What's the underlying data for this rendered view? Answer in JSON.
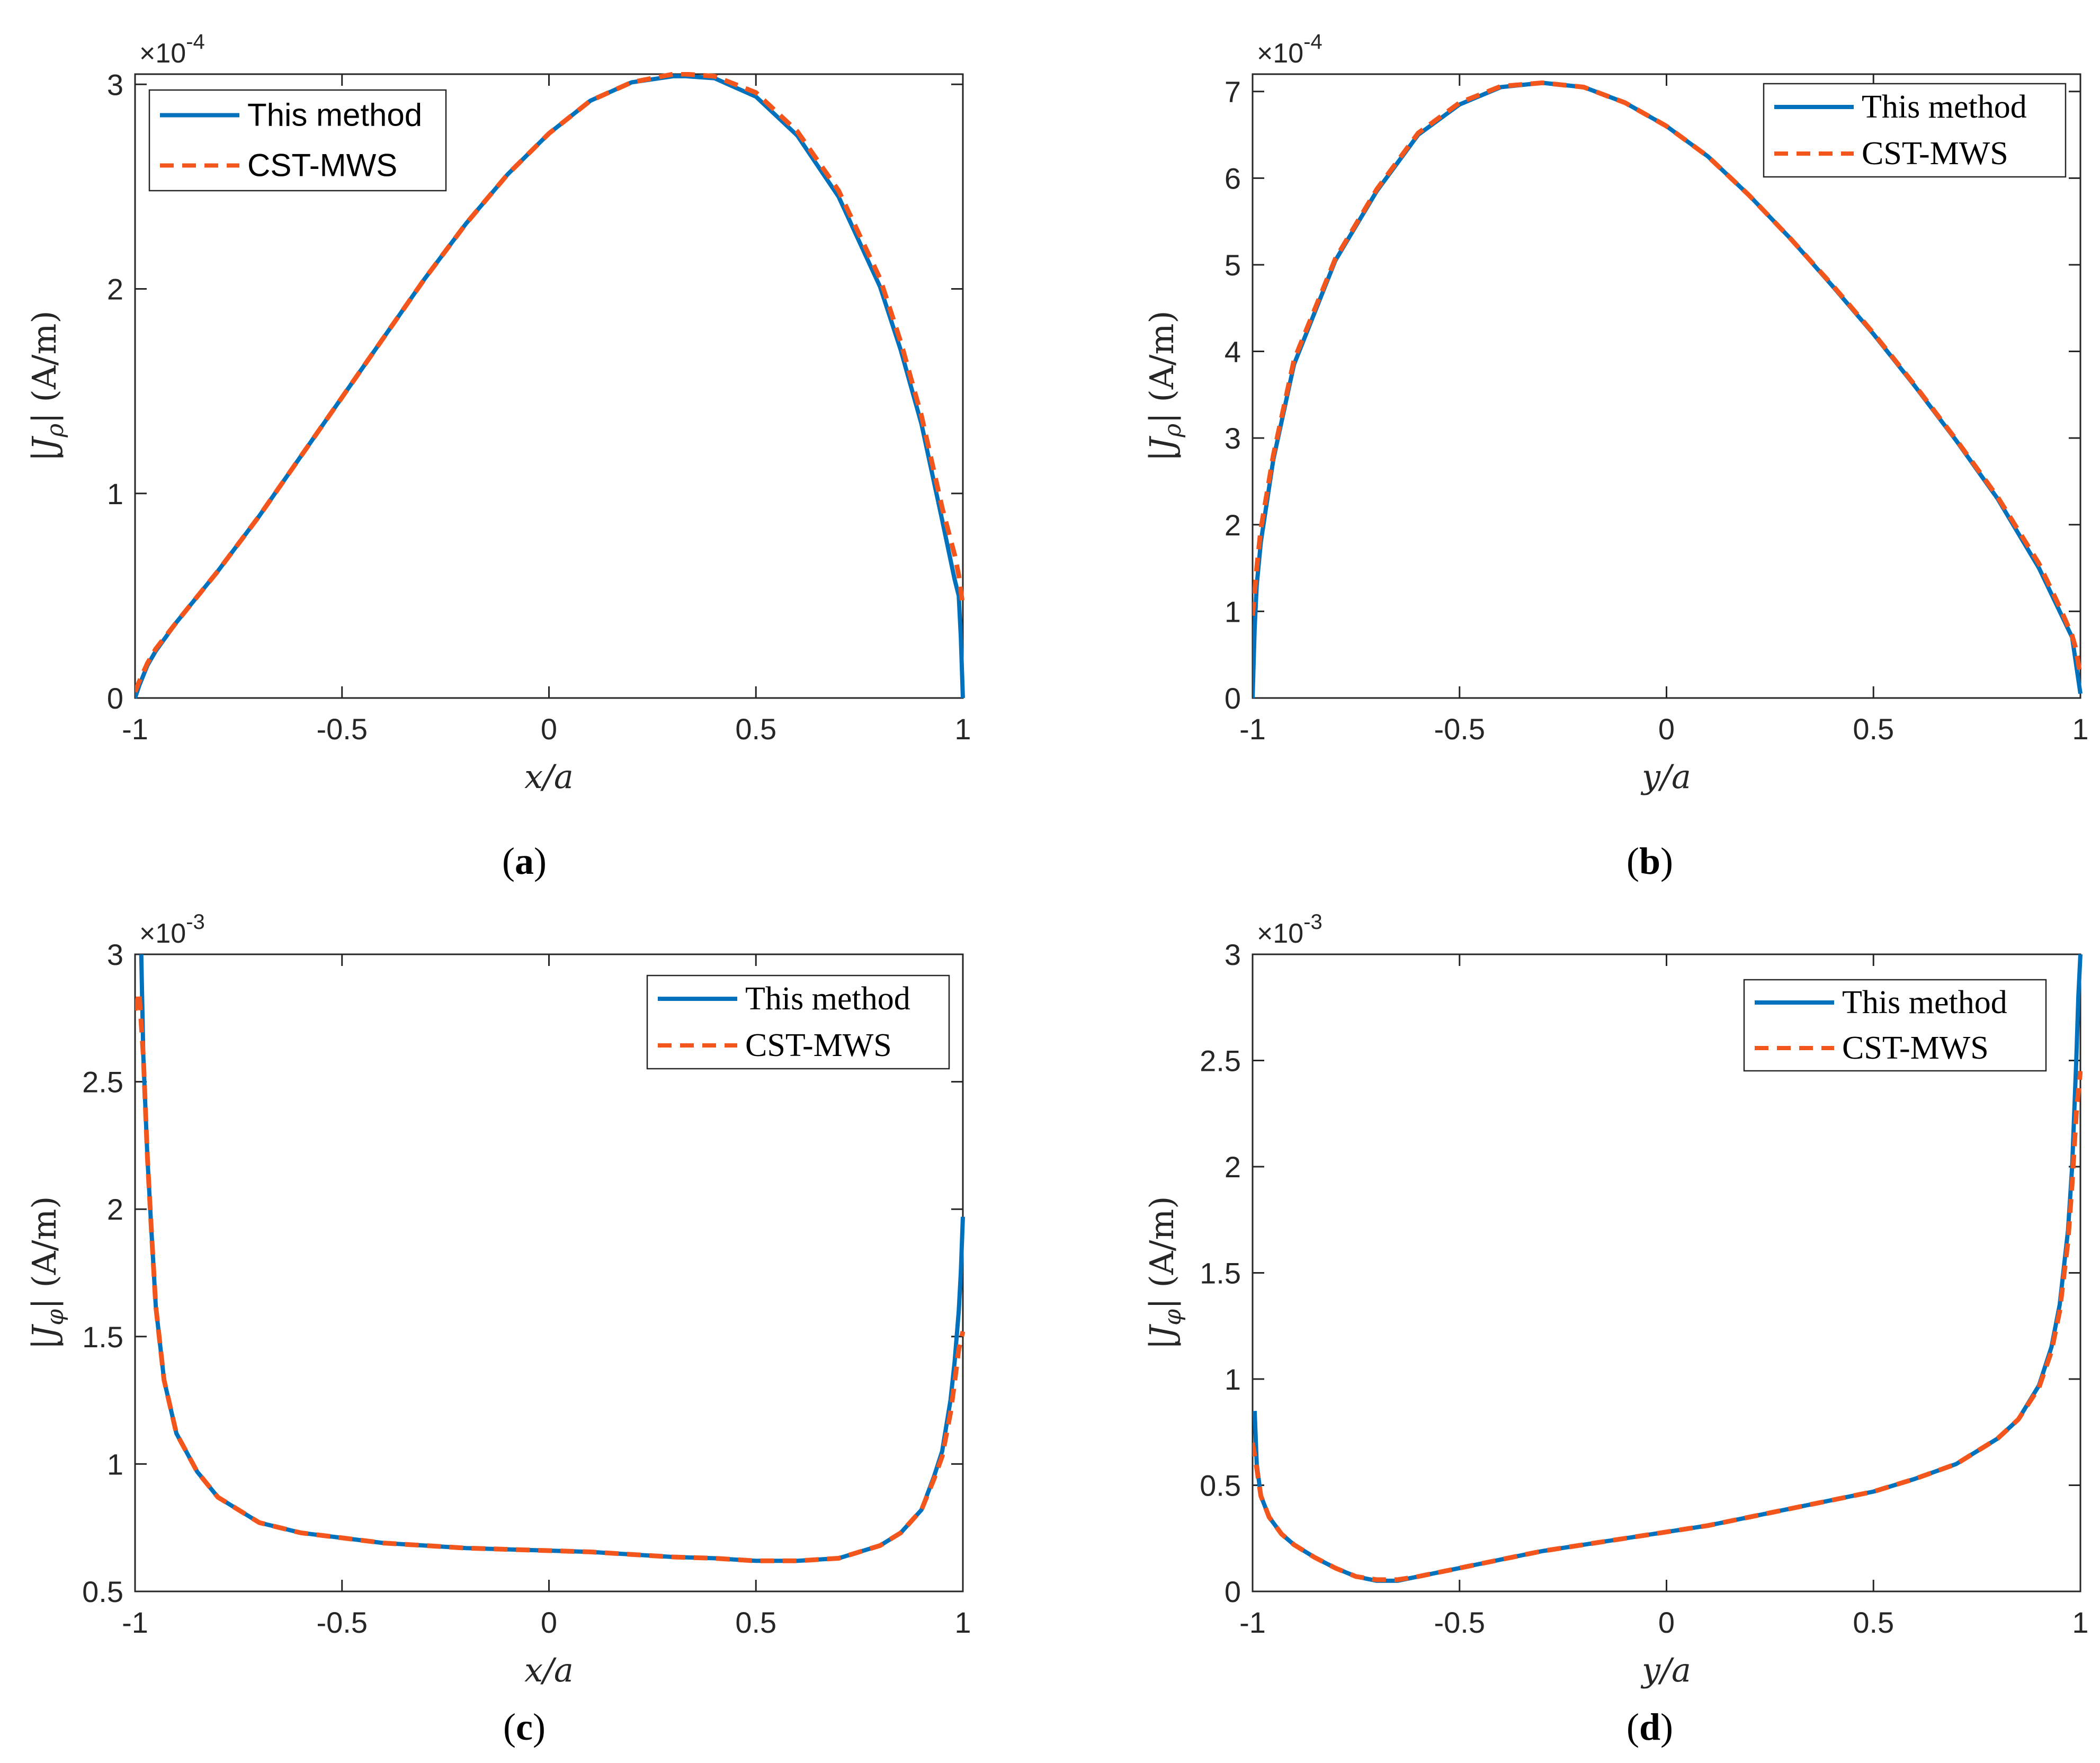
{
  "colors": {
    "method": "#0072BD",
    "cst": "#F2561D",
    "axis": "#262626"
  },
  "chart_data": [
    {
      "panel": "a",
      "caption_letter": "a",
      "type": "line",
      "xlabel": "x/a",
      "ylabel": "|J_ρ| (A/m)",
      "ylabel_parts": {
        "var": "J",
        "sub": "ρ",
        "unit": "(A/m)"
      },
      "xlim": [
        -1,
        1
      ],
      "ylim": [
        0,
        3.05
      ],
      "xticks": [
        "-1",
        "-0.5",
        "0",
        "0.5",
        "1"
      ],
      "xtick_values": [
        -1,
        -0.5,
        0,
        0.5,
        1
      ],
      "yticks": [
        "0",
        "1",
        "2",
        "3"
      ],
      "ytick_values": [
        0,
        1,
        2,
        3
      ],
      "exponent": {
        "base": "×10",
        "power": "-4"
      },
      "legend": {
        "position": "top-left",
        "style": "sans",
        "entries": [
          "This method",
          "CST-MWS"
        ]
      },
      "series": [
        {
          "name": "This method",
          "style": "solid",
          "x": [
            -1,
            -0.99,
            -0.97,
            -0.95,
            -0.9,
            -0.8,
            -0.7,
            -0.6,
            -0.5,
            -0.4,
            -0.3,
            -0.2,
            -0.1,
            0,
            0.1,
            0.2,
            0.3,
            0.33,
            0.4,
            0.5,
            0.6,
            0.7,
            0.8,
            0.85,
            0.9,
            0.95,
            0.98,
            0.99,
            0.995,
            1.0
          ],
          "y": [
            0,
            0.06,
            0.16,
            0.23,
            0.37,
            0.62,
            0.89,
            1.18,
            1.47,
            1.76,
            2.05,
            2.32,
            2.56,
            2.76,
            2.92,
            3.01,
            3.04,
            3.04,
            3.03,
            2.94,
            2.75,
            2.45,
            2.01,
            1.7,
            1.34,
            0.87,
            0.58,
            0.5,
            0.3,
            0
          ]
        },
        {
          "name": "CST-MWS",
          "style": "dashed",
          "x": [
            -1,
            -0.99,
            -0.97,
            -0.95,
            -0.9,
            -0.8,
            -0.7,
            -0.6,
            -0.5,
            -0.4,
            -0.3,
            -0.2,
            -0.1,
            0,
            0.1,
            0.2,
            0.3,
            0.33,
            0.4,
            0.5,
            0.6,
            0.7,
            0.8,
            0.85,
            0.9,
            0.95,
            0.98,
            0.99,
            1.0
          ],
          "y": [
            0.03,
            0.08,
            0.17,
            0.24,
            0.37,
            0.62,
            0.89,
            1.18,
            1.47,
            1.76,
            2.05,
            2.32,
            2.56,
            2.76,
            2.92,
            3.01,
            3.05,
            3.05,
            3.04,
            2.96,
            2.77,
            2.48,
            2.05,
            1.74,
            1.38,
            0.93,
            0.7,
            0.6,
            0.45
          ]
        }
      ]
    },
    {
      "panel": "b",
      "caption_letter": "b",
      "type": "line",
      "xlabel": "y/a",
      "ylabel": "|J_ρ| (A/m)",
      "ylabel_parts": {
        "var": "J",
        "sub": "ρ",
        "unit": "(A/m)"
      },
      "xlim": [
        -1,
        1
      ],
      "ylim": [
        0,
        7.2
      ],
      "xticks": [
        "-1",
        "-0.5",
        "0",
        "0.5",
        "1"
      ],
      "xtick_values": [
        -1,
        -0.5,
        0,
        0.5,
        1
      ],
      "yticks": [
        "0",
        "1",
        "2",
        "3",
        "4",
        "5",
        "6",
        "7"
      ],
      "ytick_values": [
        0,
        1,
        2,
        3,
        4,
        5,
        6,
        7
      ],
      "exponent": {
        "base": "×10",
        "power": "-4"
      },
      "legend": {
        "position": "top-right",
        "style": "serif",
        "entries": [
          "This method",
          "CST-MWS"
        ]
      },
      "series": [
        {
          "name": "This method",
          "style": "solid",
          "x": [
            -1,
            -0.995,
            -0.99,
            -0.98,
            -0.95,
            -0.9,
            -0.8,
            -0.7,
            -0.6,
            -0.5,
            -0.4,
            -0.3,
            -0.2,
            -0.1,
            0,
            0.1,
            0.2,
            0.3,
            0.4,
            0.5,
            0.6,
            0.7,
            0.8,
            0.9,
            0.95,
            0.98,
            1.0
          ],
          "y": [
            0,
            0.8,
            1.3,
            1.8,
            2.75,
            3.85,
            5.05,
            5.85,
            6.5,
            6.85,
            7.05,
            7.1,
            7.05,
            6.87,
            6.6,
            6.25,
            5.8,
            5.3,
            4.76,
            4.2,
            3.6,
            2.97,
            2.3,
            1.5,
            1.0,
            0.7,
            0.05
          ]
        },
        {
          "name": "CST-MWS",
          "style": "dashed",
          "x": [
            -1,
            -0.99,
            -0.98,
            -0.95,
            -0.9,
            -0.8,
            -0.7,
            -0.6,
            -0.5,
            -0.4,
            -0.3,
            -0.2,
            -0.1,
            0,
            0.1,
            0.2,
            0.3,
            0.4,
            0.5,
            0.6,
            0.7,
            0.8,
            0.9,
            0.95,
            0.98,
            0.99,
            1.0
          ],
          "y": [
            0.95,
            1.5,
            1.95,
            2.8,
            3.9,
            5.07,
            5.87,
            6.52,
            6.87,
            7.06,
            7.1,
            7.05,
            6.87,
            6.6,
            6.25,
            5.8,
            5.3,
            4.77,
            4.21,
            3.61,
            2.98,
            2.32,
            1.55,
            1.05,
            0.72,
            0.55,
            0.25
          ]
        }
      ]
    },
    {
      "panel": "c",
      "caption_letter": "c",
      "type": "line",
      "xlabel": "x/a",
      "ylabel": "|J_φ| (A/m)",
      "ylabel_parts": {
        "var": "J",
        "sub": "φ",
        "unit": "(A/m)"
      },
      "xlim": [
        -1,
        1
      ],
      "ylim": [
        0.5,
        3
      ],
      "xticks": [
        "-1",
        "-0.5",
        "0",
        "0.5",
        "1"
      ],
      "xtick_values": [
        -1,
        -0.5,
        0,
        0.5,
        1
      ],
      "yticks": [
        "0.5",
        "1",
        "1.5",
        "2",
        "2.5",
        "3"
      ],
      "ytick_values": [
        0.5,
        1,
        1.5,
        2,
        2.5,
        3
      ],
      "exponent": {
        "base": "×10",
        "power": "-3"
      },
      "legend": {
        "position": "top-right",
        "style": "serif",
        "entries": [
          "This method",
          "CST-MWS"
        ]
      },
      "series": [
        {
          "name": "This method",
          "style": "solid",
          "x": [
            -0.985,
            -0.98,
            -0.97,
            -0.96,
            -0.95,
            -0.93,
            -0.9,
            -0.85,
            -0.8,
            -0.7,
            -0.6,
            -0.5,
            -0.4,
            -0.3,
            -0.2,
            -0.1,
            0,
            0.1,
            0.2,
            0.3,
            0.4,
            0.5,
            0.6,
            0.7,
            0.8,
            0.85,
            0.9,
            0.93,
            0.95,
            0.97,
            0.98,
            0.99,
            0.995,
            1.0
          ],
          "y": [
            3.0,
            2.6,
            2.2,
            1.9,
            1.62,
            1.33,
            1.12,
            0.97,
            0.87,
            0.77,
            0.73,
            0.71,
            0.69,
            0.68,
            0.67,
            0.665,
            0.66,
            0.655,
            0.645,
            0.635,
            0.63,
            0.62,
            0.62,
            0.63,
            0.68,
            0.73,
            0.82,
            0.95,
            1.05,
            1.25,
            1.4,
            1.6,
            1.75,
            1.97
          ]
        },
        {
          "name": "CST-MWS",
          "style": "dashed",
          "x": [
            -1,
            -0.99,
            -0.98,
            -0.97,
            -0.96,
            -0.95,
            -0.93,
            -0.9,
            -0.85,
            -0.8,
            -0.7,
            -0.6,
            -0.5,
            -0.4,
            -0.3,
            -0.2,
            -0.1,
            0,
            0.1,
            0.2,
            0.3,
            0.4,
            0.5,
            0.6,
            0.7,
            0.8,
            0.85,
            0.9,
            0.93,
            0.95,
            0.97,
            0.98,
            0.99,
            1.0
          ],
          "y": [
            2.78,
            2.85,
            2.6,
            2.2,
            1.9,
            1.62,
            1.33,
            1.12,
            0.97,
            0.87,
            0.77,
            0.73,
            0.71,
            0.69,
            0.68,
            0.67,
            0.665,
            0.66,
            0.655,
            0.645,
            0.635,
            0.63,
            0.62,
            0.62,
            0.63,
            0.68,
            0.73,
            0.82,
            0.94,
            1.03,
            1.2,
            1.32,
            1.45,
            1.52
          ]
        }
      ]
    },
    {
      "panel": "d",
      "caption_letter": "d",
      "type": "line",
      "xlabel": "y/a",
      "ylabel": "|J_φ| (A/m)",
      "ylabel_parts": {
        "var": "J",
        "sub": "φ",
        "unit": "(A/m)"
      },
      "xlim": [
        -1,
        1
      ],
      "ylim": [
        0,
        3
      ],
      "xticks": [
        "-1",
        "-0.5",
        "0",
        "0.5",
        "1"
      ],
      "xtick_values": [
        -1,
        -0.5,
        0,
        0.5,
        1
      ],
      "yticks": [
        "0",
        "0.5",
        "1",
        "1.5",
        "2",
        "2.5",
        "3"
      ],
      "ytick_values": [
        0,
        0.5,
        1,
        1.5,
        2,
        2.5,
        3
      ],
      "exponent": {
        "base": "×10",
        "power": "-3"
      },
      "legend": {
        "position": "top-right",
        "style": "serif",
        "entries": [
          "This method",
          "CST-MWS"
        ]
      },
      "series": [
        {
          "name": "This method",
          "style": "solid",
          "x": [
            -0.995,
            -0.99,
            -0.98,
            -0.96,
            -0.93,
            -0.9,
            -0.85,
            -0.8,
            -0.75,
            -0.7,
            -0.65,
            -0.6,
            -0.5,
            -0.4,
            -0.3,
            -0.2,
            -0.1,
            0,
            0.1,
            0.2,
            0.3,
            0.4,
            0.5,
            0.6,
            0.7,
            0.8,
            0.85,
            0.9,
            0.93,
            0.95,
            0.97,
            0.98,
            0.99,
            0.995,
            1.0
          ],
          "y": [
            0.85,
            0.6,
            0.45,
            0.35,
            0.27,
            0.22,
            0.16,
            0.11,
            0.07,
            0.05,
            0.05,
            0.07,
            0.11,
            0.15,
            0.19,
            0.22,
            0.25,
            0.28,
            0.31,
            0.35,
            0.39,
            0.43,
            0.47,
            0.53,
            0.6,
            0.72,
            0.81,
            0.97,
            1.15,
            1.35,
            1.7,
            2.0,
            2.5,
            2.8,
            3.0
          ]
        },
        {
          "name": "CST-MWS",
          "style": "dashed",
          "x": [
            -1,
            -0.99,
            -0.98,
            -0.96,
            -0.93,
            -0.9,
            -0.85,
            -0.8,
            -0.75,
            -0.7,
            -0.65,
            -0.6,
            -0.5,
            -0.4,
            -0.3,
            -0.2,
            -0.1,
            0,
            0.1,
            0.2,
            0.3,
            0.4,
            0.5,
            0.6,
            0.7,
            0.8,
            0.85,
            0.9,
            0.93,
            0.95,
            0.97,
            0.98,
            0.99,
            1.0
          ],
          "y": [
            0.7,
            0.58,
            0.45,
            0.35,
            0.27,
            0.22,
            0.16,
            0.11,
            0.07,
            0.055,
            0.055,
            0.07,
            0.11,
            0.15,
            0.19,
            0.22,
            0.25,
            0.28,
            0.31,
            0.35,
            0.39,
            0.43,
            0.47,
            0.53,
            0.6,
            0.72,
            0.81,
            0.96,
            1.13,
            1.32,
            1.65,
            1.92,
            2.25,
            2.45
          ]
        }
      ]
    }
  ]
}
